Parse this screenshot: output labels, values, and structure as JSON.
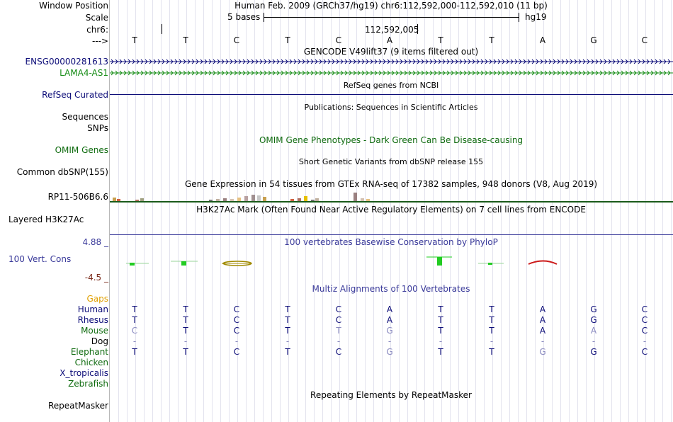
{
  "position_row": {
    "label": "Window Position",
    "text": "Human Feb. 2009 (GRCh37/hg19)   chr6:112,592,000-112,592,010 (11 bp)"
  },
  "scale_row": {
    "label": "Scale",
    "left_text": "5 bases",
    "right_text": "hg19"
  },
  "chrom_row": {
    "label": "chr6:",
    "coordinate": "112,592,005"
  },
  "bases_row": {
    "label": "--->",
    "bases": [
      "T",
      "T",
      "C",
      "T",
      "C",
      "A",
      "T",
      "T",
      "A",
      "G",
      "C"
    ]
  },
  "gencode": {
    "title": "GENCODE V49lift37 (9 items filtered out)",
    "gene1": "ENSG00000281613",
    "gene2": "LAMA4-AS1",
    "gene1_color": "#0c0c78",
    "gene2_color": "#138b13"
  },
  "refseq": {
    "label": "RefSeq Curated",
    "title": "RefSeq genes from NCBI",
    "color": "#0c0c78"
  },
  "publications": {
    "title": "Publications: Sequences in Scientific Articles",
    "label1": "Sequences",
    "label2": "SNPs"
  },
  "omim": {
    "title": "OMIM Gene Phenotypes - Dark Green Can Be Disease-causing",
    "label": "OMIM Genes",
    "color": "#0f6b0f"
  },
  "dbsnp": {
    "title": "Short Genetic Variants from dbSNP release 155",
    "label": "Common dbSNP(155)"
  },
  "gtex": {
    "title": "Gene Expression in 54 tissues from GTEx RNA-seq of 17382 samples, 948 donors (V8, Aug 2019)",
    "label": "RP11-506B6.6"
  },
  "h3k27ac": {
    "title": "H3K27Ac Mark (Often Found Near Active Regulatory Elements) on 7 cell lines from ENCODE",
    "label": "Layered H3K27Ac"
  },
  "phylop": {
    "title": "100 vertebrates Basewise Conservation by PhyloP",
    "label": "100 Vert. Cons",
    "max_label": "4.88 _",
    "min_label": "-4.5 _",
    "color": "#3a3a9a",
    "min_color": "#7a2a1a"
  },
  "multiz": {
    "title": "Multiz Alignments of 100 Vertebrates",
    "gaps_label": "Gaps",
    "gaps_color": "#e0a000",
    "species": [
      {
        "name": "Human",
        "bases": [
          "T",
          "T",
          "C",
          "T",
          "C",
          "A",
          "T",
          "T",
          "A",
          "G",
          "C"
        ],
        "faded": [
          false,
          false,
          false,
          false,
          false,
          false,
          false,
          false,
          false,
          false,
          false
        ]
      },
      {
        "name": "Rhesus",
        "bases": [
          "T",
          "T",
          "C",
          "T",
          "C",
          "A",
          "T",
          "T",
          "A",
          "G",
          "C"
        ],
        "faded": [
          false,
          false,
          false,
          false,
          false,
          false,
          false,
          false,
          false,
          false,
          false
        ]
      },
      {
        "name": "Mouse",
        "bases": [
          "C",
          "T",
          "C",
          "T",
          "T",
          "G",
          "T",
          "T",
          "A",
          "A",
          "C"
        ],
        "faded": [
          true,
          false,
          false,
          false,
          true,
          true,
          false,
          false,
          false,
          true,
          false
        ]
      },
      {
        "name": "Dog",
        "bases": [
          "-",
          "-",
          "-",
          "-",
          "-",
          "-",
          "-",
          "-",
          "-",
          "-",
          "-"
        ],
        "faded": [
          true,
          true,
          true,
          true,
          true,
          true,
          true,
          true,
          true,
          true,
          true
        ]
      },
      {
        "name": "Elephant",
        "bases": [
          "T",
          "T",
          "C",
          "T",
          "C",
          "G",
          "T",
          "T",
          "G",
          "G",
          "C"
        ],
        "faded": [
          false,
          false,
          false,
          false,
          false,
          true,
          false,
          false,
          true,
          false,
          false
        ]
      },
      {
        "name": "Chicken",
        "bases": [],
        "faded": []
      },
      {
        "name": "X_tropicalis",
        "bases": [],
        "faded": []
      },
      {
        "name": "Zebrafish",
        "bases": [],
        "faded": []
      }
    ]
  },
  "repeatmasker": {
    "title": "Repeating Elements by RepeatMasker",
    "label": "RepeatMasker"
  }
}
